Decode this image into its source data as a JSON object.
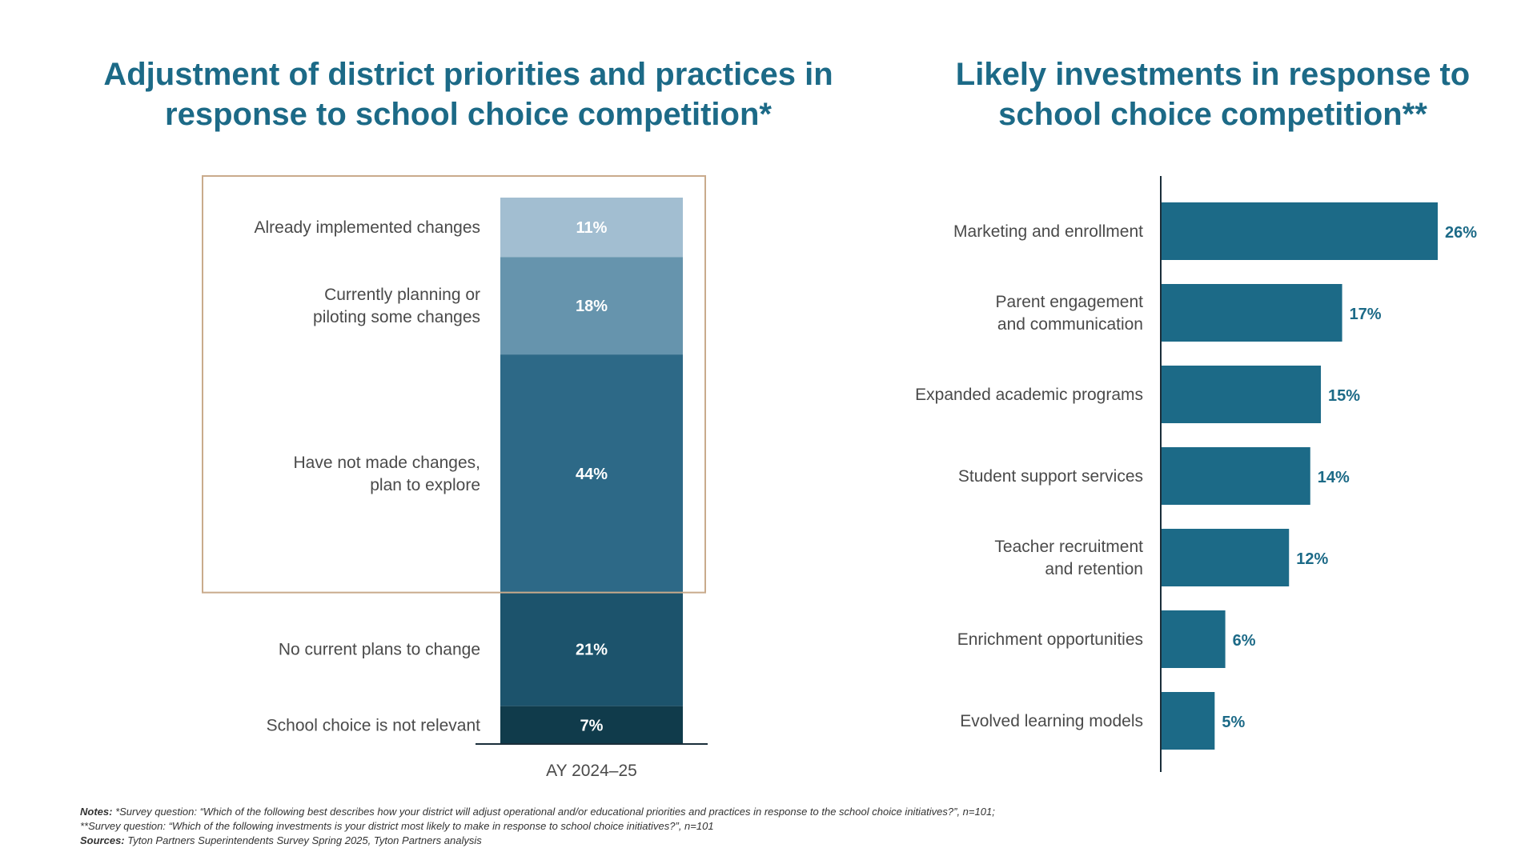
{
  "left_title": "Adjustment of district priorities and practices in response to school choice competition*",
  "right_title": "Likely investments in response to school choice competition**",
  "notes": {
    "notes_label": "Notes:",
    "line1": "*Survey question: “Which of the following best describes how your district will adjust operational and/or educational priorities and practices in response to the school choice initiatives?”, n=101;",
    "line2": "**Survey question: “Which of the following investments is your district most likely to make in response to school choice initiatives?”, n=101",
    "sources_label": "Sources:",
    "sources": "Tyton Partners Superintendents Survey Spring 2025, Tyton Partners analysis"
  },
  "colors": {
    "title": "#1c6a87",
    "highlight_box": "#c9ab8c",
    "hbar": "#1c6a87",
    "hbar_label": "#1c6a87"
  },
  "chart_data": [
    {
      "type": "bar",
      "stacked": true,
      "categories": [
        "AY 2024–25"
      ],
      "series": [
        {
          "name": "Already implemented changes",
          "lines": [
            "Already implemented changes"
          ],
          "values": [
            11
          ],
          "label": "11%",
          "color": "#a2bed1"
        },
        {
          "name": "Currently planning or piloting some changes",
          "lines": [
            "Currently planning or",
            "piloting some changes"
          ],
          "values": [
            18
          ],
          "label": "18%",
          "color": "#6694ad"
        },
        {
          "name": "Have not made changes, plan to explore",
          "lines": [
            "Have not made changes,",
            "plan to explore"
          ],
          "values": [
            44
          ],
          "label": "44%",
          "color": "#2d6987"
        },
        {
          "name": "No current plans to change",
          "lines": [
            "No current plans to change"
          ],
          "values": [
            21
          ],
          "label": "21%",
          "color": "#1c536c"
        },
        {
          "name": "School choice is not relevant",
          "lines": [
            "School choice is not relevant"
          ],
          "values": [
            7
          ],
          "label": "7%",
          "color": "#103b4b"
        }
      ],
      "ylim": [
        0,
        101
      ],
      "highlighted_series": [
        "Already implemented changes",
        "Currently planning or piloting some changes",
        "Have not made changes, plan to explore"
      ]
    },
    {
      "type": "bar",
      "orientation": "horizontal",
      "categories": [
        "Marketing and enrollment",
        "Parent engagement and communication",
        "Expanded academic programs",
        "Student support services",
        "Teacher recruitment and retention",
        "Enrichment opportunities",
        "Evolved learning models"
      ],
      "category_lines": [
        [
          "Marketing and enrollment"
        ],
        [
          "Parent engagement",
          "and communication"
        ],
        [
          "Expanded academic programs"
        ],
        [
          "Student support services"
        ],
        [
          "Teacher recruitment",
          "and retention"
        ],
        [
          "Enrichment opportunities"
        ],
        [
          "Evolved learning models"
        ]
      ],
      "values": [
        26,
        17,
        15,
        14,
        12,
        6,
        5
      ],
      "value_labels": [
        "26%",
        "17%",
        "15%",
        "14%",
        "12%",
        "6%",
        "5%"
      ],
      "xlim": [
        0,
        26
      ]
    }
  ]
}
